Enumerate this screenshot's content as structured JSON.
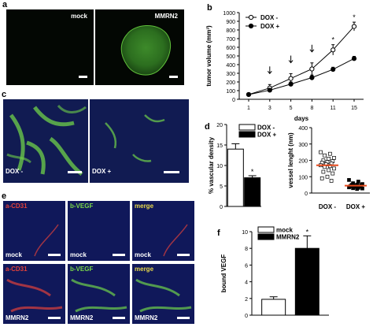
{
  "panels": {
    "a": {
      "letter": "a",
      "images": [
        "mock",
        "MMRN2"
      ]
    },
    "b": {
      "letter": "b"
    },
    "c": {
      "letter": "c",
      "images": [
        "DOX -",
        "DOX +"
      ]
    },
    "d": {
      "letter": "d"
    },
    "e": {
      "letter": "e",
      "channels": {
        "red": "a-CD31",
        "green": "b-VEGF",
        "merge": "merge"
      },
      "rows": [
        "mock",
        "MMRN2"
      ]
    },
    "f": {
      "letter": "f"
    }
  },
  "colors": {
    "black": "#000000",
    "red_line": "#e64b1e",
    "micro_bg": "#101a4a",
    "vessel_green": "#6fd24a"
  },
  "chart_data": [
    {
      "panel": "b",
      "type": "line",
      "xlabel": "days",
      "ylabel": "tumor volume (mm³)",
      "x": [
        1,
        3,
        5,
        8,
        11,
        15
      ],
      "ylim": [
        0,
        1000
      ],
      "yticks": [
        0,
        100,
        200,
        300,
        400,
        500,
        600,
        700,
        800,
        900,
        1000
      ],
      "series": [
        {
          "name": "DOX -",
          "marker": "open",
          "values": [
            55,
            130,
            240,
            350,
            570,
            840
          ],
          "errors": [
            15,
            40,
            55,
            70,
            60,
            50
          ]
        },
        {
          "name": "DOX +",
          "marker": "filled",
          "values": [
            55,
            105,
            175,
            250,
            345,
            470
          ],
          "errors": [
            10,
            20,
            25,
            30,
            25,
            25
          ]
        }
      ],
      "arrows_at_x": [
        3,
        5,
        8
      ],
      "significance": [
        {
          "x": 11,
          "label": "*"
        },
        {
          "x": 15,
          "label": "*"
        }
      ],
      "legend": "top-left"
    },
    {
      "panel": "d-left",
      "type": "bar",
      "ylabel": "% vascular density",
      "categories": [
        "DOX -",
        "DOX +"
      ],
      "values": [
        14,
        7
      ],
      "errors": [
        1.3,
        0.5
      ],
      "ylim": [
        0,
        20
      ],
      "yticks": [
        0,
        5,
        10,
        15,
        20
      ],
      "legend_entries": [
        {
          "name": "DOX -",
          "fill": "open"
        },
        {
          "name": "DOX +",
          "fill": "filled"
        }
      ],
      "significance": [
        {
          "category": "DOX +",
          "label": "*"
        }
      ]
    },
    {
      "panel": "d-right",
      "type": "scatter",
      "ylabel": "vessel lenght (nm)",
      "categories": [
        "DOX -",
        "DOX +"
      ],
      "ylim": [
        0,
        400
      ],
      "yticks": [
        0,
        100,
        200,
        300,
        400
      ],
      "series": [
        {
          "name": "DOX -",
          "marker": "open-square",
          "mean": 170,
          "values": [
            250,
            240,
            230,
            215,
            210,
            200,
            195,
            190,
            185,
            180,
            175,
            170,
            165,
            160,
            150,
            140,
            130,
            120,
            100,
            90,
            75
          ]
        },
        {
          "name": "DOX +",
          "marker": "filled-square",
          "mean": 45,
          "values": [
            80,
            70,
            60,
            55,
            52,
            50,
            48,
            45,
            42,
            40,
            38,
            35,
            32,
            30,
            28,
            25
          ]
        }
      ]
    },
    {
      "panel": "f",
      "type": "bar",
      "ylabel": "bound VEGF",
      "categories": [
        "mock",
        "MMRN2"
      ],
      "values": [
        1.9,
        8
      ],
      "errors": [
        0.3,
        1.5
      ],
      "ylim": [
        0,
        10
      ],
      "yticks": [
        0,
        2,
        4,
        6,
        8,
        10
      ],
      "legend_entries": [
        {
          "name": "mock",
          "fill": "open"
        },
        {
          "name": "MMRN2",
          "fill": "filled"
        }
      ],
      "significance": [
        {
          "category": "MMRN2",
          "label": "*"
        }
      ]
    }
  ]
}
